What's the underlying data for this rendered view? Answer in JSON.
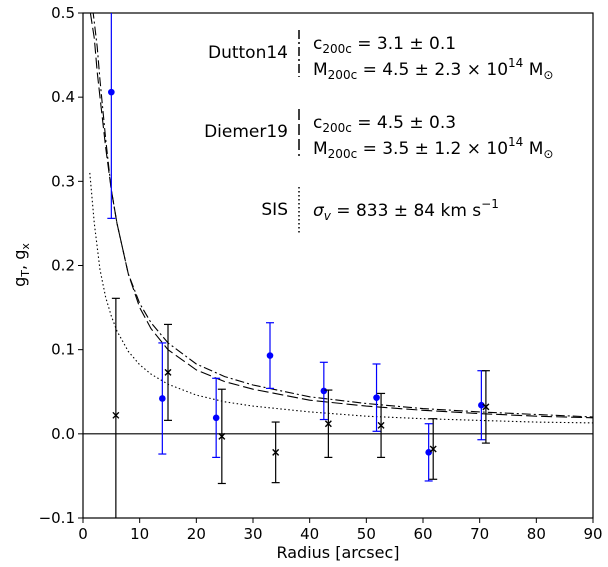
{
  "chart_data": {
    "type": "scatter",
    "xlabel": "Radius [arcsec]",
    "ylabel_main": "g",
    "ylabel_sub_t": "T",
    "ylabel_sep": ", g",
    "ylabel_sub_x": "x",
    "xlim": [
      0,
      90
    ],
    "ylim": [
      -0.1,
      0.5
    ],
    "xticks": [
      0,
      10,
      20,
      30,
      40,
      50,
      60,
      70,
      80,
      90
    ],
    "yticks": [
      -0.1,
      0.0,
      0.1,
      0.2,
      0.3,
      0.4,
      0.5
    ],
    "ytick_labels": [
      "−0.1",
      "0.0",
      "0.1",
      "0.2",
      "0.3",
      "0.4",
      "0.5"
    ],
    "zero_line": 0.0,
    "series": [
      {
        "kind": "points",
        "marker": "circle",
        "color": "#0000ff",
        "points": [
          {
            "x": 5.0,
            "y": 0.406,
            "err": 0.15
          },
          {
            "x": 14.0,
            "y": 0.042,
            "err": 0.066
          },
          {
            "x": 23.5,
            "y": 0.019,
            "err": 0.047
          },
          {
            "x": 33.0,
            "y": 0.093,
            "err": 0.039
          },
          {
            "x": 42.5,
            "y": 0.051,
            "err": 0.034
          },
          {
            "x": 51.8,
            "y": 0.043,
            "err": 0.04
          },
          {
            "x": 61.0,
            "y": -0.022,
            "err": 0.034
          },
          {
            "x": 70.3,
            "y": 0.034,
            "err": 0.041
          }
        ]
      },
      {
        "kind": "points",
        "marker": "x",
        "color": "#000000",
        "points": [
          {
            "x": 5.8,
            "y": 0.022,
            "err": 0.139
          },
          {
            "x": 15.0,
            "y": 0.073,
            "err": 0.057
          },
          {
            "x": 24.5,
            "y": -0.003,
            "err": 0.056
          },
          {
            "x": 34.0,
            "y": -0.022,
            "err": 0.036
          },
          {
            "x": 43.3,
            "y": 0.012,
            "err": 0.04
          },
          {
            "x": 52.6,
            "y": 0.01,
            "err": 0.038
          },
          {
            "x": 61.8,
            "y": -0.018,
            "err": 0.036
          },
          {
            "x": 71.1,
            "y": 0.032,
            "err": 0.043
          }
        ]
      },
      {
        "kind": "curve",
        "model": "Dutton14",
        "dash": "9,3,2,3",
        "x": [
          1.2,
          1.8,
          2.5,
          3,
          4,
          5,
          6,
          8,
          10,
          12,
          15,
          20,
          25,
          30,
          40,
          50,
          60,
          70,
          80,
          90
        ],
        "y": [
          0.5,
          0.5,
          0.46,
          0.42,
          0.35,
          0.29,
          0.25,
          0.19,
          0.155,
          0.132,
          0.108,
          0.083,
          0.068,
          0.058,
          0.044,
          0.036,
          0.03,
          0.026,
          0.023,
          0.02
        ]
      },
      {
        "kind": "curve",
        "model": "Diemer19",
        "dash": "11,4",
        "x": [
          1.3,
          2,
          2.5,
          3,
          4,
          5,
          6,
          8,
          10,
          12,
          15,
          20,
          25,
          30,
          40,
          50,
          60,
          70,
          80,
          90
        ],
        "y": [
          0.5,
          0.47,
          0.43,
          0.4,
          0.34,
          0.29,
          0.25,
          0.19,
          0.15,
          0.125,
          0.1,
          0.076,
          0.062,
          0.053,
          0.04,
          0.033,
          0.028,
          0.024,
          0.021,
          0.019
        ]
      },
      {
        "kind": "curve",
        "model": "SIS",
        "dash": "1.5,2.5",
        "x": [
          1.2,
          2,
          3,
          4,
          5,
          6,
          8,
          10,
          12,
          15,
          20,
          25,
          30,
          40,
          50,
          60,
          70,
          80,
          90
        ],
        "y": [
          0.31,
          0.25,
          0.195,
          0.162,
          0.14,
          0.122,
          0.098,
          0.082,
          0.071,
          0.059,
          0.046,
          0.038,
          0.033,
          0.026,
          0.021,
          0.018,
          0.016,
          0.014,
          0.013
        ]
      }
    ],
    "legend": [
      {
        "name": "Dutton14",
        "dash": "9,3,2,3",
        "line1": {
          "main": "c",
          "sub": "200c",
          "rest": " = 3.1 ± 0.1"
        },
        "line2": {
          "main": "M",
          "sub": "200c",
          "rest": " = 4.5 ± 2.3 × 10",
          "sup": "14",
          "unit": " M",
          "unit_sub": "⊙"
        }
      },
      {
        "name": "Diemer19",
        "dash": "11,4",
        "line1": {
          "main": "c",
          "sub": "200c",
          "rest": " = 4.5 ± 0.3"
        },
        "line2": {
          "main": "M",
          "sub": "200c",
          "rest": " = 3.5 ± 1.2 × 10",
          "sup": "14",
          "unit": " M",
          "unit_sub": "⊙"
        }
      },
      {
        "name": "SIS",
        "dash": "1.5,2.5",
        "line1": {
          "main": "σ",
          "sub": "v",
          "rest": " = 833 ± 84 km s",
          "sup": "−1"
        }
      }
    ]
  }
}
